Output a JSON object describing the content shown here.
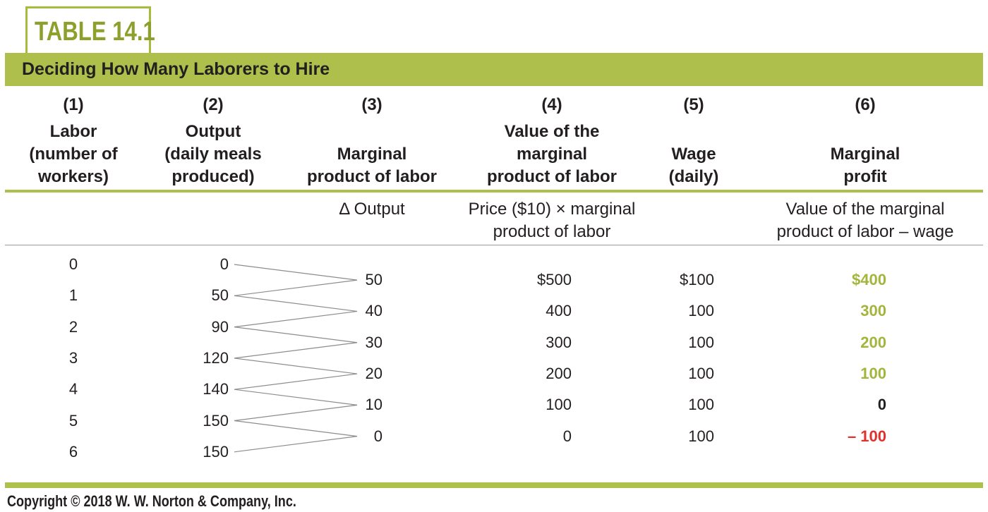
{
  "badge": "TABLE 14.1",
  "title": "Deciding How Many Laborers to Hire",
  "columns": [
    {
      "num": "(1)",
      "lines": [
        "Labor",
        "(number of",
        "workers)"
      ]
    },
    {
      "num": "(2)",
      "lines": [
        "Output",
        "(daily meals",
        "produced)"
      ]
    },
    {
      "num": "(3)",
      "lines": [
        "",
        "Marginal",
        "product of labor"
      ]
    },
    {
      "num": "(4)",
      "lines": [
        "Value of the",
        "marginal",
        "product of labor"
      ]
    },
    {
      "num": "(5)",
      "lines": [
        "",
        "Wage",
        "(daily)"
      ]
    },
    {
      "num": "(6)",
      "lines": [
        "",
        "Marginal",
        "profit"
      ]
    }
  ],
  "formulas": {
    "col3": [
      "Δ Output"
    ],
    "col4": [
      "Price ($10) × marginal",
      "product of labor"
    ],
    "col6": [
      "Value of the marginal",
      "product of labor – wage"
    ]
  },
  "labor": [
    "0",
    "1",
    "2",
    "3",
    "4",
    "5",
    "6"
  ],
  "output": [
    "0",
    "50",
    "90",
    "120",
    "140",
    "150",
    "150"
  ],
  "marginal_product": [
    "50",
    "40",
    "30",
    "20",
    "10",
    "0"
  ],
  "value_mp": [
    "$500",
    "400",
    "300",
    "200",
    "100",
    "0"
  ],
  "wage": [
    "$100",
    "100",
    "100",
    "100",
    "100",
    "100"
  ],
  "marginal_profit": [
    {
      "text": "$400",
      "color": "#a3b53a"
    },
    {
      "text": "300",
      "color": "#a3b53a"
    },
    {
      "text": "200",
      "color": "#a3b53a"
    },
    {
      "text": "100",
      "color": "#a3b53a"
    },
    {
      "text": "0",
      "color": "#231f20"
    },
    {
      "text": "– 100",
      "color": "#e0312b"
    }
  ],
  "colors": {
    "accent": "#afbf4b",
    "positive": "#a3b53a",
    "negative": "#e0312b"
  },
  "copyright": "Copyright © 2018 W. W. Norton & Company, Inc."
}
